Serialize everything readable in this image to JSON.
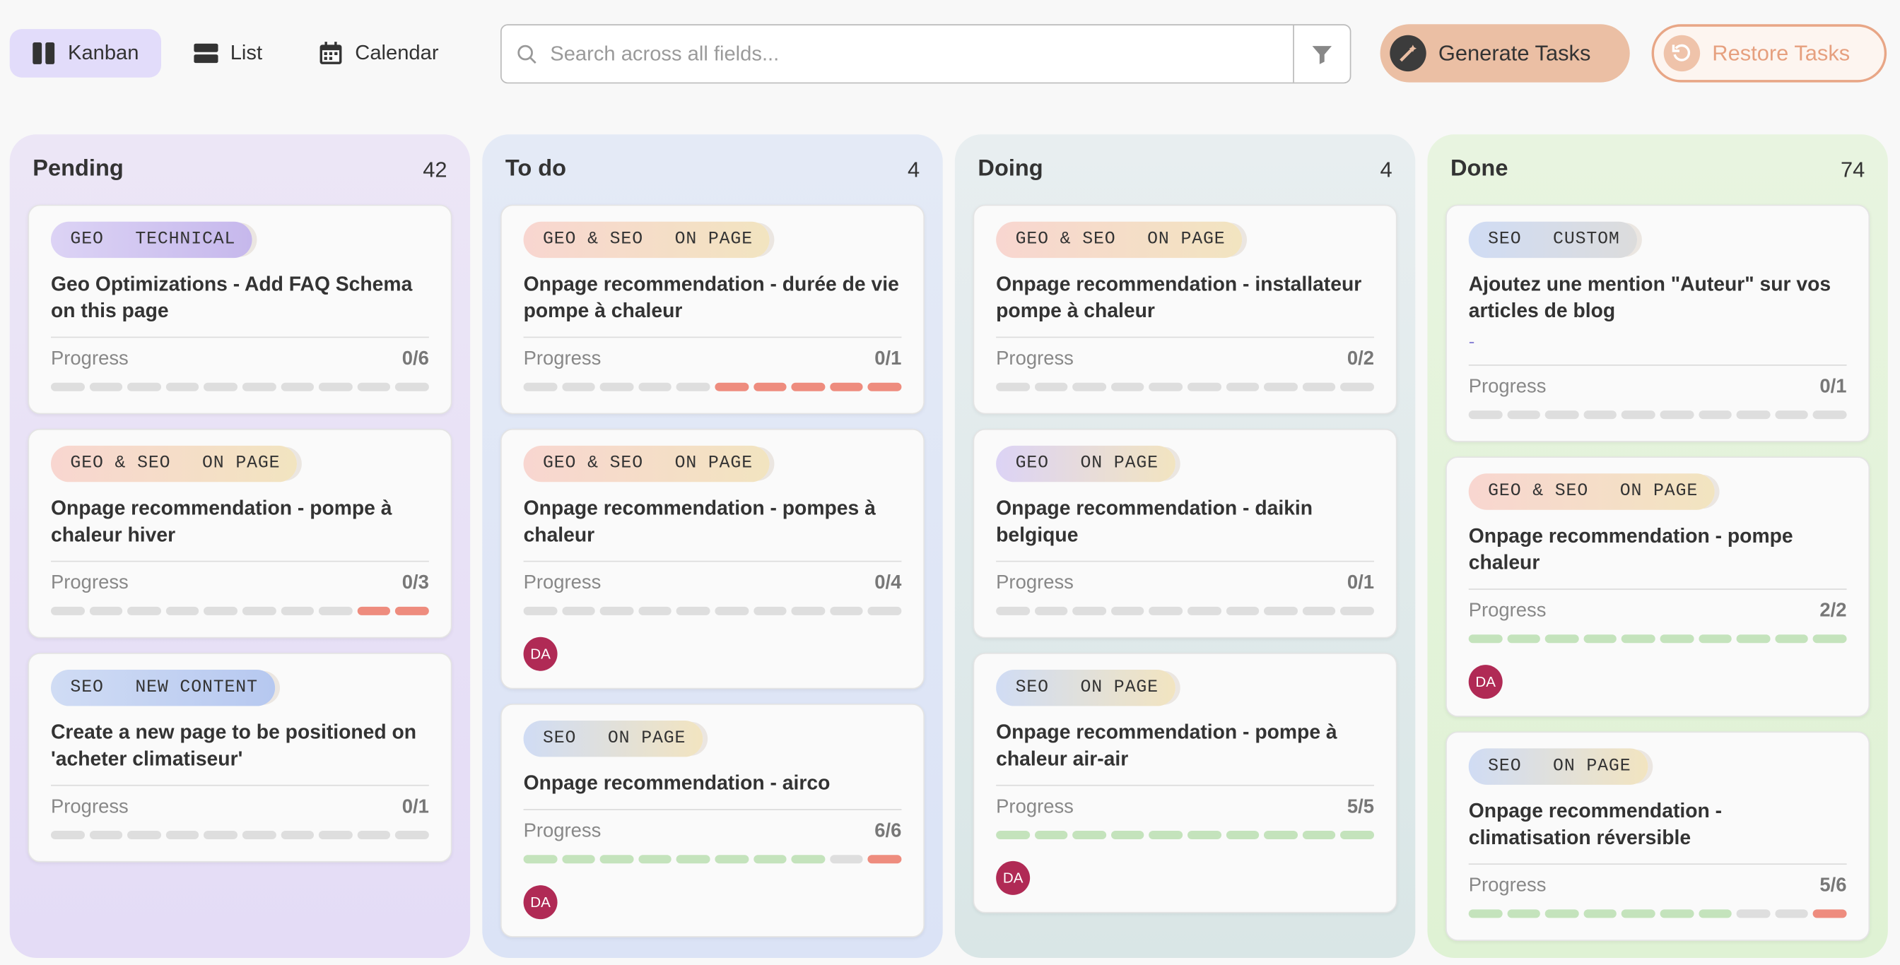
{
  "toolbar": {
    "views": [
      "Kanban",
      "List",
      "Calendar"
    ],
    "search_placeholder": "Search across all fields...",
    "generate_button": "Generate Tasks",
    "restore_button": "Restore Tasks"
  },
  "columns": [
    {
      "title": "Pending",
      "count": "42",
      "background": "linear-gradient(180deg,#ece6f6,#e4dcf6)",
      "cards": [
        {
          "tags": [
            {
              "text": "GEO",
              "color": "#dcd3f5"
            },
            {
              "text": "TECHNICAL",
              "color": "#c6b8ec"
            }
          ],
          "title": "Geo Optimizations - Add FAQ Schema on this page",
          "progress_label": "Progress",
          "progress": "0/6",
          "segment_colors": [
            "#dedede",
            "#dedede",
            "#dedede",
            "#dedede",
            "#dedede",
            "#dedede",
            "#dedede",
            "#dedede",
            "#dedede",
            "#dedede"
          ]
        },
        {
          "tags": [
            {
              "text": "GEO & SEO",
              "color": "#f8d6d0"
            },
            {
              "text": "ON PAGE",
              "color": "#f2e4c0"
            }
          ],
          "title": "Onpage recommendation - pompe à chaleur hiver",
          "progress_label": "Progress",
          "progress": "0/3",
          "segment_colors": [
            "#dedede",
            "#dedede",
            "#dedede",
            "#dedede",
            "#dedede",
            "#dedede",
            "#dedede",
            "#dedede",
            "#ee8c7e",
            "#ee8c7e"
          ]
        },
        {
          "tags": [
            {
              "text": "SEO",
              "color": "#d0dcf4"
            },
            {
              "text": "NEW CONTENT",
              "color": "#b6c8f0"
            }
          ],
          "title": "Create a new page to be positioned on 'acheter climatiseur'",
          "progress_label": "Progress",
          "progress": "0/1",
          "segment_colors": [
            "#dedede",
            "#dedede",
            "#dedede",
            "#dedede",
            "#dedede",
            "#dedede",
            "#dedede",
            "#dedede",
            "#dedede",
            "#dedede"
          ]
        }
      ]
    },
    {
      "title": "To do",
      "count": "4",
      "background": "linear-gradient(180deg,#e4eaf6,#dbe3f6)",
      "cards": [
        {
          "tags": [
            {
              "text": "GEO & SEO",
              "color": "#f8d6d0"
            },
            {
              "text": "ON PAGE",
              "color": "#f2e4c0"
            }
          ],
          "title": "Onpage recommendation - durée de vie pompe à chaleur",
          "progress_label": "Progress",
          "progress": "0/1",
          "segment_colors": [
            "#dedede",
            "#dedede",
            "#dedede",
            "#dedede",
            "#dedede",
            "#ee8c7e",
            "#ee8c7e",
            "#ee8c7e",
            "#ee8c7e",
            "#ee8c7e"
          ]
        },
        {
          "tags": [
            {
              "text": "GEO & SEO",
              "color": "#f8d6d0"
            },
            {
              "text": "ON PAGE",
              "color": "#f2e4c0"
            }
          ],
          "title": "Onpage recommendation - pompes à chaleur",
          "progress_label": "Progress",
          "progress": "0/4",
          "segment_colors": [
            "#dedede",
            "#dedede",
            "#dedede",
            "#dedede",
            "#dedede",
            "#dedede",
            "#dedede",
            "#dedede",
            "#dedede",
            "#dedede"
          ],
          "avatar": "DA"
        },
        {
          "tags": [
            {
              "text": "SEO",
              "color": "#d0dcf4"
            },
            {
              "text": "ON PAGE",
              "color": "#f2e4c0"
            }
          ],
          "title": "Onpage recommendation - airco",
          "progress_label": "Progress",
          "progress": "6/6",
          "segment_colors": [
            "#c4e3bc",
            "#c4e3bc",
            "#c4e3bc",
            "#c4e3bc",
            "#c4e3bc",
            "#c4e3bc",
            "#c4e3bc",
            "#c4e3bc",
            "#dedede",
            "#ee8c7e"
          ],
          "avatar": "DA"
        }
      ]
    },
    {
      "title": "Doing",
      "count": "4",
      "background": "linear-gradient(180deg,#e8eef0,#d9e6e6)",
      "cards": [
        {
          "tags": [
            {
              "text": "GEO & SEO",
              "color": "#f8d6d0"
            },
            {
              "text": "ON PAGE",
              "color": "#f2e4c0"
            }
          ],
          "title": "Onpage recommendation - installateur pompe à chaleur",
          "progress_label": "Progress",
          "progress": "0/2",
          "segment_colors": [
            "#dedede",
            "#dedede",
            "#dedede",
            "#dedede",
            "#dedede",
            "#dedede",
            "#dedede",
            "#dedede",
            "#dedede",
            "#dedede"
          ]
        },
        {
          "tags": [
            {
              "text": "GEO",
              "color": "#dcd3f5"
            },
            {
              "text": "ON PAGE",
              "color": "#f2e4c0"
            }
          ],
          "title": "Onpage recommendation - daikin belgique",
          "progress_label": "Progress",
          "progress": "0/1",
          "segment_colors": [
            "#dedede",
            "#dedede",
            "#dedede",
            "#dedede",
            "#dedede",
            "#dedede",
            "#dedede",
            "#dedede",
            "#dedede",
            "#dedede"
          ]
        },
        {
          "tags": [
            {
              "text": "SEO",
              "color": "#d0dcf4"
            },
            {
              "text": "ON PAGE",
              "color": "#f2e4c0"
            }
          ],
          "title": "Onpage recommendation - pompe à chaleur air-air",
          "progress_label": "Progress",
          "progress": "5/5",
          "segment_colors": [
            "#c4e3bc",
            "#c4e3bc",
            "#c4e3bc",
            "#c4e3bc",
            "#c4e3bc",
            "#c4e3bc",
            "#c4e3bc",
            "#c4e3bc",
            "#c4e3bc",
            "#c4e3bc"
          ],
          "avatar": "DA"
        }
      ]
    },
    {
      "title": "Done",
      "count": "74",
      "background": "linear-gradient(180deg,#e8f4e0,#dff2d4)",
      "cards": [
        {
          "tags": [
            {
              "text": "SEO",
              "color": "#d0dcf4"
            },
            {
              "text": "CUSTOM",
              "color": "#dcdcdc"
            }
          ],
          "title": "Ajoutez une mention \"Auteur\" sur vos articles de blog",
          "subtitle": "-",
          "progress_label": "Progress",
          "progress": "0/1",
          "segment_colors": [
            "#dedede",
            "#dedede",
            "#dedede",
            "#dedede",
            "#dedede",
            "#dedede",
            "#dedede",
            "#dedede",
            "#dedede",
            "#dedede"
          ]
        },
        {
          "tags": [
            {
              "text": "GEO & SEO",
              "color": "#f8d6d0"
            },
            {
              "text": "ON PAGE",
              "color": "#f2e4c0"
            }
          ],
          "title": "Onpage recommendation - pompe chaleur",
          "progress_label": "Progress",
          "progress": "2/2",
          "segment_colors": [
            "#c4e3bc",
            "#c4e3bc",
            "#c4e3bc",
            "#c4e3bc",
            "#c4e3bc",
            "#c4e3bc",
            "#c4e3bc",
            "#c4e3bc",
            "#c4e3bc",
            "#c4e3bc"
          ],
          "avatar": "DA"
        },
        {
          "tags": [
            {
              "text": "SEO",
              "color": "#d0dcf4"
            },
            {
              "text": "ON PAGE",
              "color": "#f2e4c0"
            }
          ],
          "title": "Onpage recommendation - climatisation réversible",
          "progress_label": "Progress",
          "progress": "5/6",
          "segment_colors": [
            "#c4e3bc",
            "#c4e3bc",
            "#c4e3bc",
            "#c4e3bc",
            "#c4e3bc",
            "#c4e3bc",
            "#c4e3bc",
            "#dedede",
            "#dedede",
            "#ee8c7e"
          ]
        }
      ]
    }
  ]
}
